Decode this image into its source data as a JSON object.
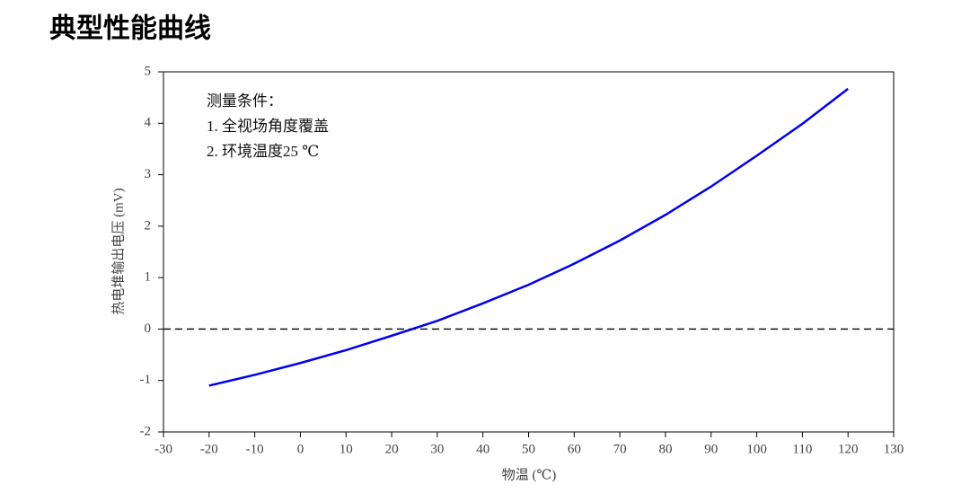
{
  "chart_data": {
    "type": "line",
    "title": "典型性能曲线",
    "x_label": "物温 (℃)",
    "y_label": "热电堆输出电压 (mV)",
    "annotations": [
      "测量条件：",
      "1. 全视场角度覆盖",
      "2. 环境温度25 ℃"
    ],
    "x": [
      -20,
      -10,
      0,
      10,
      20,
      30,
      40,
      50,
      60,
      70,
      80,
      90,
      100,
      110,
      120
    ],
    "series": [
      {
        "color": "#0000ee",
        "values": [
          -1.1,
          -0.89,
          -0.66,
          -0.41,
          -0.13,
          0.16,
          0.5,
          0.86,
          1.27,
          1.72,
          2.22,
          2.77,
          3.37,
          3.99,
          4.67
        ]
      }
    ],
    "xlim": [
      -30,
      130
    ],
    "xticks": [
      -30,
      -20,
      -10,
      0,
      10,
      20,
      30,
      40,
      50,
      60,
      70,
      80,
      90,
      100,
      110,
      120,
      130
    ],
    "ylim": [
      -2,
      5
    ],
    "yticks": [
      -2,
      -1,
      0,
      1,
      2,
      3,
      4,
      5
    ],
    "reference_line": {
      "y": 0,
      "style": "dashed",
      "color": "#000000"
    },
    "grid": false
  }
}
